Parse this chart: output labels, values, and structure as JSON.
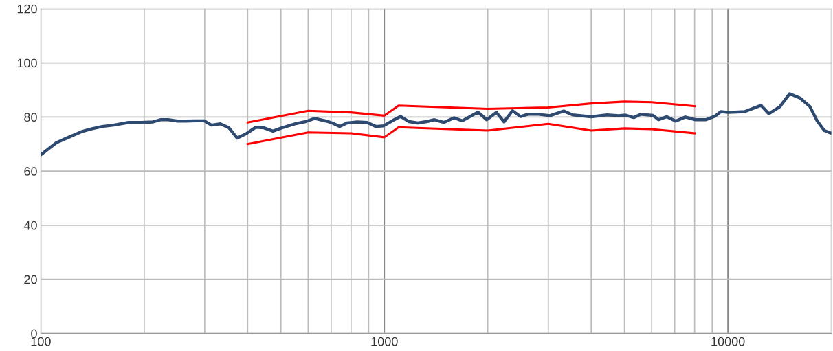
{
  "chart_data": {
    "type": "line",
    "log": "x",
    "xlim": [
      100,
      20000
    ],
    "ylim": [
      0,
      120
    ],
    "xticks": [
      100,
      1000,
      10000
    ],
    "yticks": [
      0,
      20,
      40,
      60,
      80,
      100,
      120
    ],
    "grid": true,
    "marker": "none",
    "line_style": "solid",
    "series": [
      {
        "color": "#2e4a70",
        "x": [
          100,
          111,
          118,
          131,
          139,
          151,
          163,
          180,
          196,
          212,
          223,
          235,
          250,
          264,
          283,
          299,
          314,
          333,
          353,
          373,
          396,
          422,
          446,
          474,
          503,
          551,
          590,
          627,
          677,
          705,
          742,
          778,
          834,
          891,
          945,
          993,
          1061,
          1115,
          1180,
          1251,
          1327,
          1399,
          1489,
          1596,
          1686,
          1873,
          1986,
          2119,
          2230,
          2360,
          2489,
          2618,
          2809,
          3033,
          3328,
          3534,
          3999,
          4446,
          4808,
          5035,
          5320,
          5568,
          6053,
          6282,
          6640,
          7047,
          7516,
          8053,
          8630,
          9164,
          9536,
          10050,
          11180,
          12490,
          13150,
          14160,
          15130,
          16210,
          17290,
          18200,
          19080,
          20000
        ],
        "values": [
          66,
          70.5,
          72,
          74.5,
          75.5,
          76.5,
          77,
          78,
          78,
          78.2,
          79,
          79,
          78.5,
          78.5,
          78.6,
          78.6,
          77,
          77.5,
          76,
          72.2,
          73.8,
          76.2,
          76,
          74.8,
          76,
          77.5,
          78.3,
          79.5,
          78.5,
          77.8,
          76.5,
          77.8,
          78.2,
          78,
          76.5,
          76.7,
          78.8,
          80.2,
          78.3,
          77.8,
          78.3,
          79,
          78,
          79.7,
          78.6,
          81.8,
          79,
          81.7,
          78.2,
          82.3,
          80.2,
          81,
          81,
          80.5,
          82.2,
          80.8,
          80.1,
          80.8,
          80.5,
          80.7,
          79.8,
          81,
          80.6,
          79,
          80.1,
          78.5,
          80,
          79,
          79,
          80.3,
          82,
          81.7,
          82,
          84.3,
          81.2,
          83.8,
          88.6,
          87,
          84,
          78.5,
          75,
          74
        ]
      },
      {
        "color": "#ff0000",
        "x": [
          400,
          600,
          800,
          1000,
          1100,
          2000,
          3000,
          4000,
          5000,
          6000,
          8000
        ],
        "values": [
          78,
          82.3,
          81.7,
          80.5,
          84.2,
          83,
          83.5,
          85,
          85.7,
          85.5,
          84
        ]
      },
      {
        "color": "#ff0000",
        "x": [
          400,
          600,
          800,
          1000,
          1100,
          2000,
          3000,
          4000,
          5000,
          6000,
          8000
        ],
        "values": [
          70,
          74.3,
          74,
          72.5,
          76.2,
          75,
          77.5,
          75,
          75.8,
          75.5,
          74
        ]
      }
    ]
  }
}
